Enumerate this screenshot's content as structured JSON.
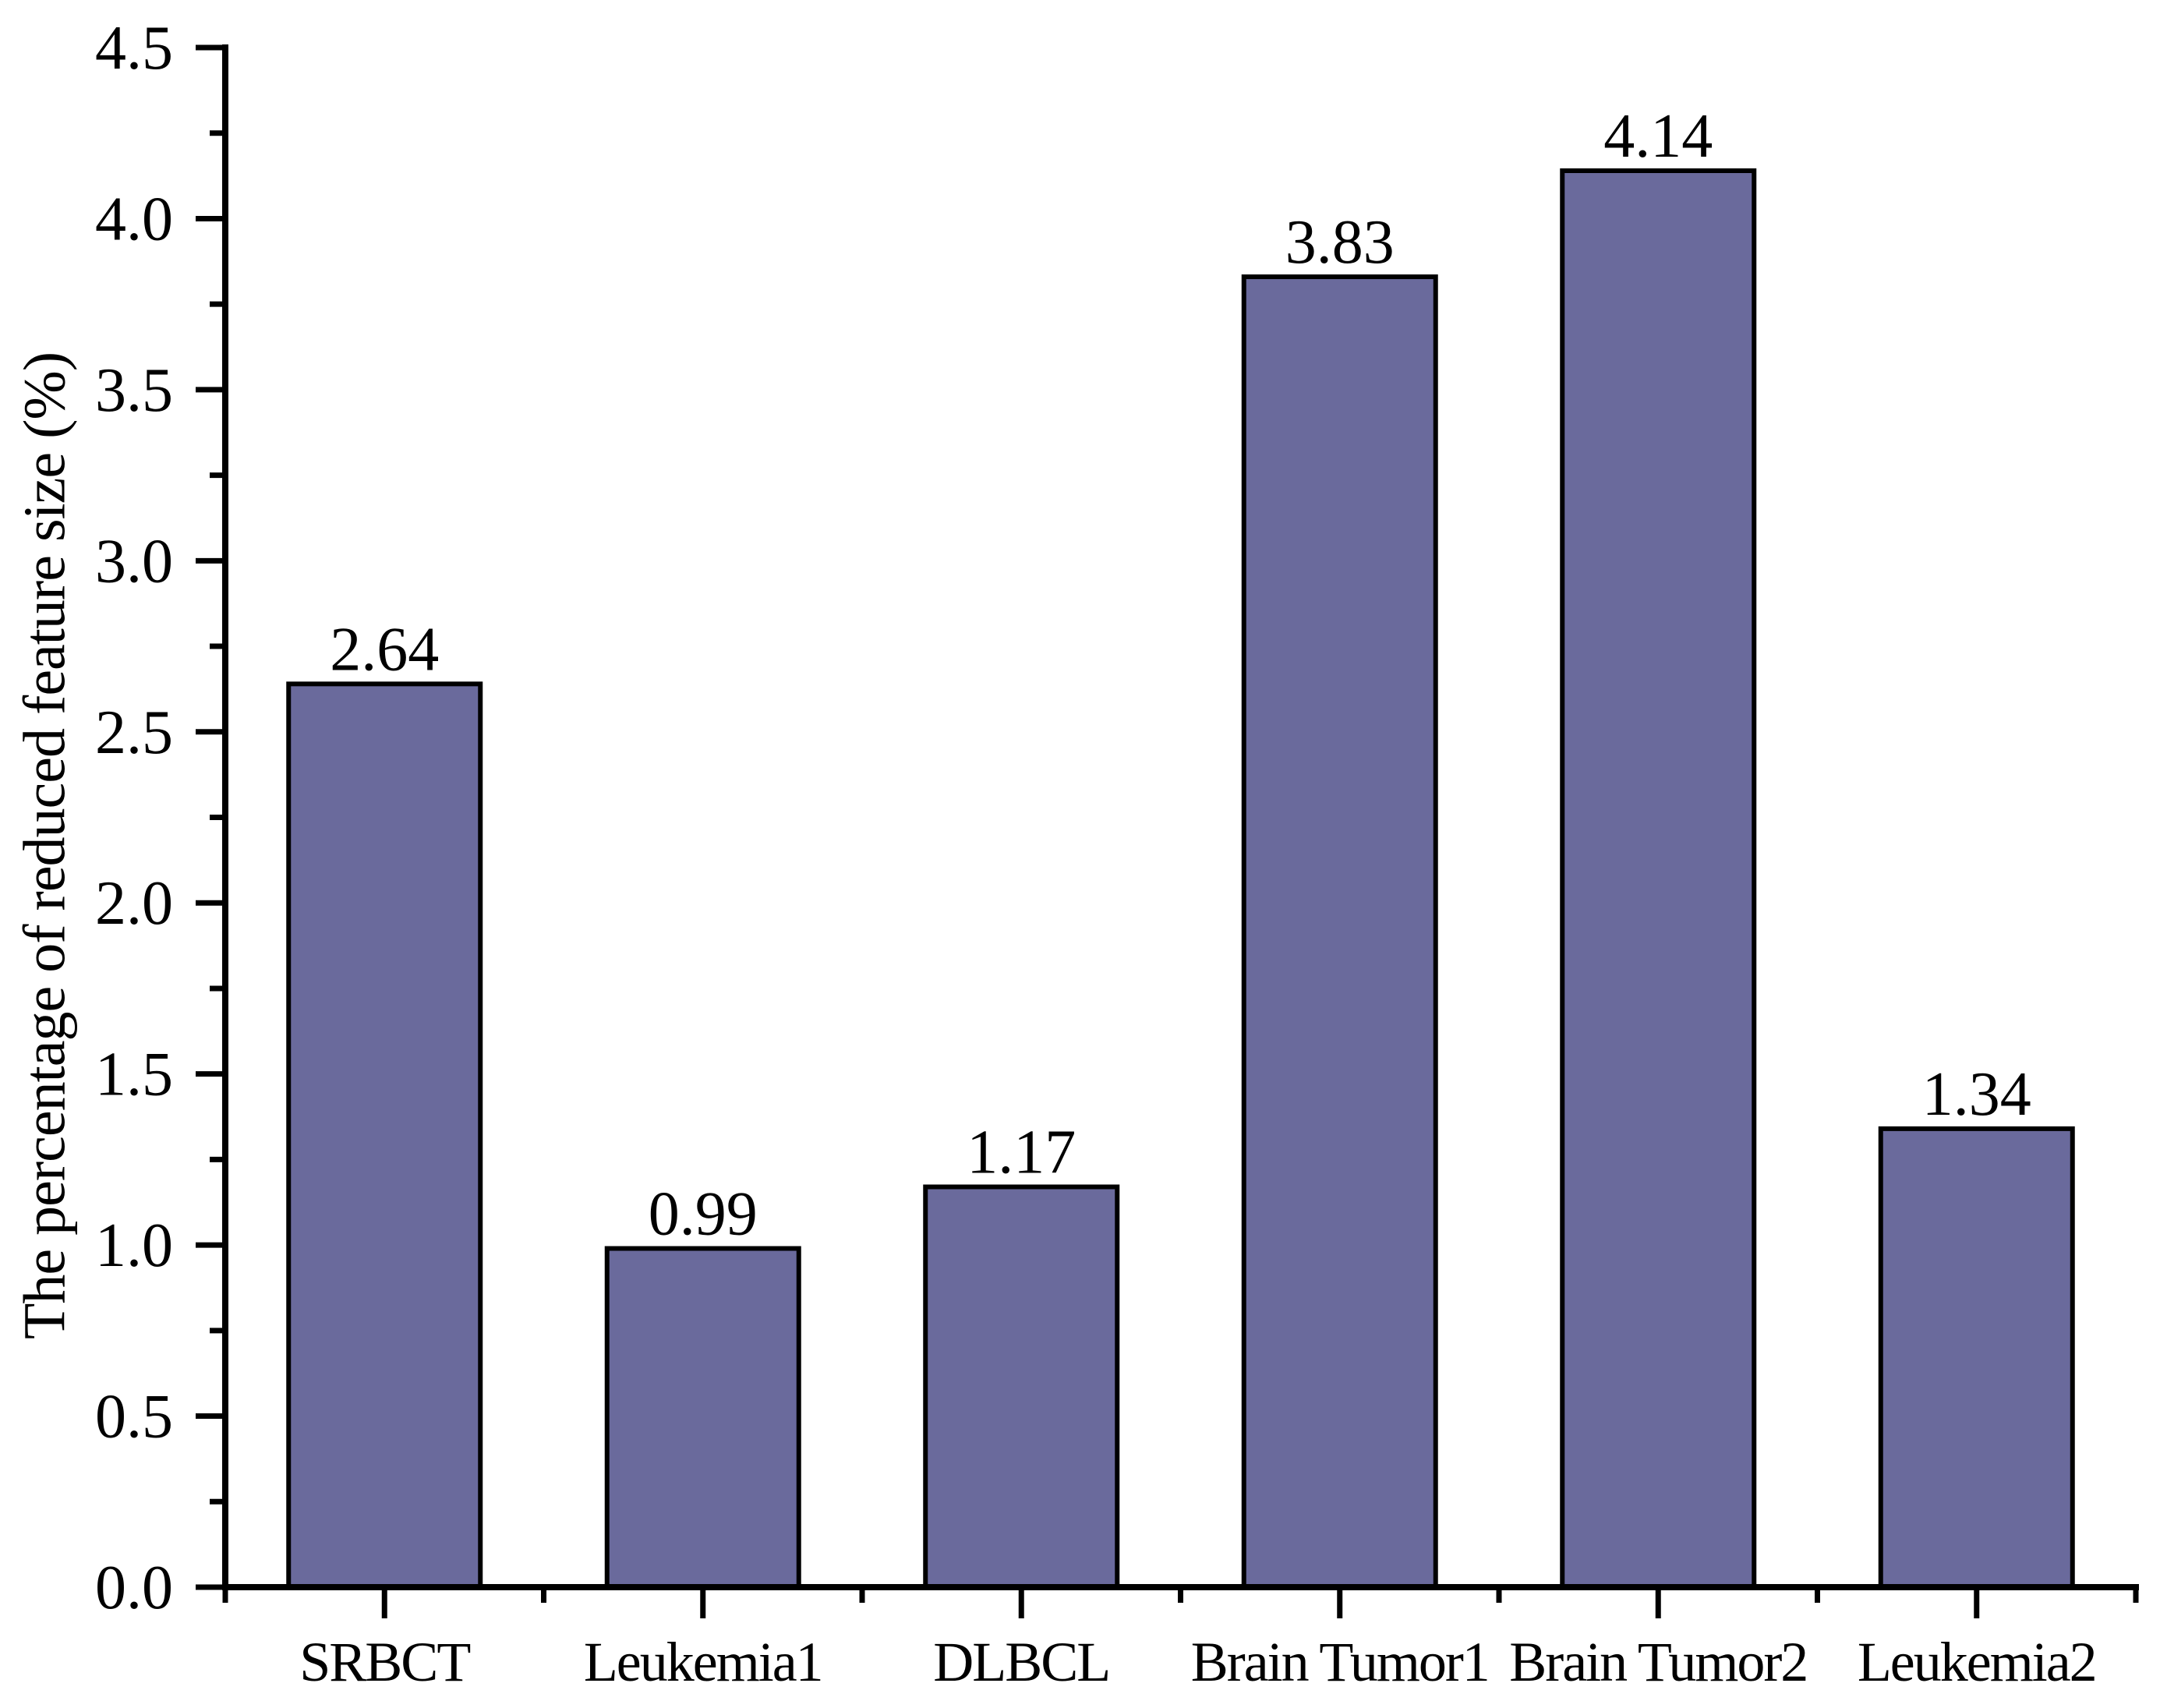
{
  "figure": {
    "background": "#ffffff"
  },
  "chart_data": {
    "type": "bar",
    "title": "",
    "categories": [
      "SRBCT",
      "Leukemia1",
      "DLBCL",
      "Brain Tumor1",
      "Brain Tumor2",
      "Leukemia2"
    ],
    "values": [
      2.64,
      0.99,
      1.17,
      3.83,
      4.14,
      1.34
    ],
    "data_labels": [
      "2.64",
      "0.99",
      "1.17",
      "3.83",
      "4.14",
      "1.34"
    ],
    "xlabel": "",
    "ylabel": "The percentage of reduced feature size (%)",
    "ylim": [
      0.0,
      4.5
    ],
    "y_major_tick_step": 0.5,
    "y_minor_tick_step": 0.25,
    "y_tick_labels": [
      "0.0",
      "0.5",
      "1.0",
      "1.5",
      "2.0",
      "2.5",
      "3.0",
      "3.5",
      "4.0",
      "4.5"
    ],
    "grid": false,
    "legend": "none",
    "colors": {
      "bar_fill": "#6A6A9C",
      "bar_border": "#000000",
      "axis": "#000000",
      "text": "#000000"
    }
  }
}
